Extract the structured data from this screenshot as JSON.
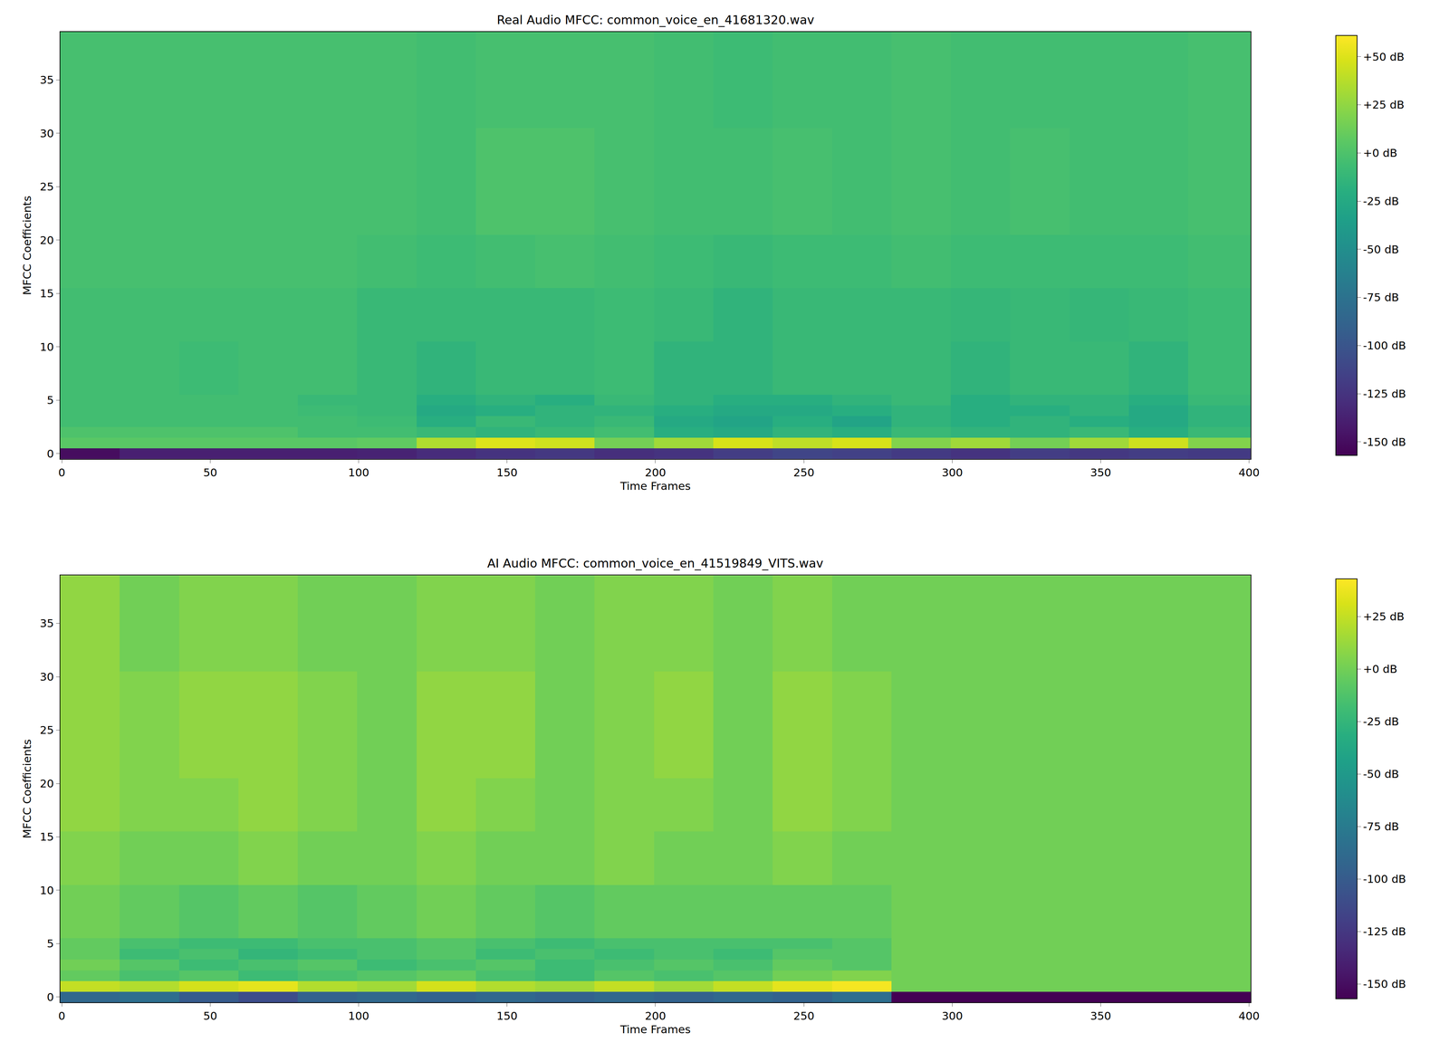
{
  "chart_data": [
    {
      "type": "heatmap",
      "title": "Real Audio MFCC: common_voice_en_41681320.wav",
      "x_label": "Time Frames",
      "y_label": "MFCC Coefficients",
      "xlim": [
        -0.5,
        400.5
      ],
      "ylim": [
        -0.5,
        39.5
      ],
      "xticks": [
        0,
        50,
        100,
        150,
        200,
        250,
        300,
        350,
        400
      ],
      "yticks": [
        0,
        5,
        10,
        15,
        20,
        25,
        30,
        35
      ],
      "color": "Viridis",
      "x_edges": [
        -0.5,
        19.5,
        39.5,
        59.5,
        79.5,
        99.5,
        119.5,
        139.5,
        159.5,
        179.5,
        199.5,
        219.5,
        239.5,
        259.5,
        279.5,
        299.5,
        319.5,
        339.5,
        359.5,
        379.5,
        400.5
      ],
      "y_edges": [
        -0.5,
        0.5,
        1.5,
        2.5,
        3.5,
        4.5,
        5.5,
        10.5,
        15.5,
        20.5,
        30.5,
        39.5
      ],
      "values": [
        [
          -150,
          -138,
          -138,
          -138,
          -138,
          -136,
          -130,
          -125,
          -122,
          -128,
          -125,
          -118,
          -112,
          -115,
          -120,
          -125,
          -118,
          -122,
          -118,
          -120
        ],
        [
          5,
          5,
          5,
          5,
          5,
          8,
          35,
          50,
          45,
          15,
          30,
          48,
          40,
          48,
          20,
          30,
          15,
          30,
          45,
          20
        ],
        [
          0,
          0,
          0,
          0,
          -5,
          -5,
          -10,
          -15,
          -10,
          -5,
          -20,
          -25,
          -15,
          -20,
          -10,
          -15,
          -15,
          -10,
          -20,
          -10
        ],
        [
          -5,
          -5,
          -5,
          -5,
          -5,
          -8,
          -20,
          -10,
          -15,
          -10,
          -25,
          -30,
          -20,
          -30,
          -15,
          -20,
          -15,
          -20,
          -25,
          -15
        ],
        [
          -5,
          -5,
          -5,
          -5,
          -8,
          -10,
          -25,
          -20,
          -15,
          -15,
          -20,
          -25,
          -25,
          -20,
          -15,
          -20,
          -20,
          -15,
          -25,
          -15
        ],
        [
          -5,
          -5,
          -5,
          -5,
          -10,
          -10,
          -20,
          -15,
          -20,
          -10,
          -15,
          -20,
          -20,
          -15,
          -10,
          -20,
          -15,
          -15,
          -20,
          -10
        ],
        [
          -5,
          -5,
          -8,
          -5,
          -5,
          -10,
          -15,
          -10,
          -10,
          -8,
          -15,
          -15,
          -10,
          -10,
          -10,
          -15,
          -10,
          -10,
          -15,
          -8
        ],
        [
          -5,
          -5,
          -5,
          -5,
          -5,
          -10,
          -10,
          -10,
          -10,
          -8,
          -10,
          -15,
          -10,
          -10,
          -10,
          -12,
          -10,
          -12,
          -10,
          -8
        ],
        [
          -3,
          -3,
          -3,
          -3,
          -3,
          -5,
          -8,
          -5,
          -3,
          -5,
          -8,
          -10,
          -8,
          -8,
          -5,
          -8,
          -8,
          -8,
          -8,
          -5
        ],
        [
          -3,
          -3,
          -3,
          -3,
          -3,
          -3,
          -5,
          0,
          0,
          -3,
          -5,
          -5,
          -3,
          -5,
          -3,
          -5,
          -3,
          -5,
          -5,
          -3
        ],
        [
          -3,
          -3,
          -3,
          -3,
          -3,
          -3,
          -5,
          -3,
          -3,
          -3,
          -5,
          -8,
          -5,
          -5,
          -3,
          -5,
          -5,
          -5,
          -5,
          -3
        ]
      ],
      "colorbar_range": [
        -157,
        61
      ],
      "colorbar_ticks": [
        {
          "value": 50,
          "label": "+50 dB"
        },
        {
          "value": 25,
          "label": "+25 dB"
        },
        {
          "value": 0,
          "label": "+0 dB"
        },
        {
          "value": -25,
          "label": "-25 dB"
        },
        {
          "value": -50,
          "label": "-50 dB"
        },
        {
          "value": -75,
          "label": "-75 dB"
        },
        {
          "value": -100,
          "label": "-100 dB"
        },
        {
          "value": -125,
          "label": "-125 dB"
        },
        {
          "value": -150,
          "label": "-150 dB"
        }
      ]
    },
    {
      "type": "heatmap",
      "title": "AI Audio MFCC: common_voice_en_41519849_VITS.wav",
      "x_label": "Time Frames",
      "y_label": "MFCC Coefficients",
      "xlim": [
        -0.5,
        400.5
      ],
      "ylim": [
        -0.5,
        39.5
      ],
      "xticks": [
        0,
        50,
        100,
        150,
        200,
        250,
        300,
        350,
        400
      ],
      "yticks": [
        0,
        5,
        10,
        15,
        20,
        25,
        30,
        35
      ],
      "color": "Viridis",
      "x_edges": [
        -0.5,
        19.5,
        39.5,
        59.5,
        79.5,
        99.5,
        119.5,
        139.5,
        159.5,
        179.5,
        199.5,
        219.5,
        239.5,
        259.5,
        279.5,
        299.5,
        319.5,
        339.5,
        359.5,
        379.5,
        400.5
      ],
      "y_edges": [
        -0.5,
        0.5,
        1.5,
        2.5,
        3.5,
        4.5,
        5.5,
        10.5,
        15.5,
        20.5,
        30.5,
        39.5
      ],
      "values": [
        [
          -90,
          -85,
          -100,
          -110,
          -95,
          -90,
          -95,
          -90,
          -95,
          -90,
          -95,
          -90,
          -95,
          -85,
          -157,
          -157,
          -157,
          -157,
          -157,
          -157
        ],
        [
          25,
          20,
          30,
          35,
          20,
          15,
          30,
          20,
          15,
          25,
          15,
          25,
          35,
          40,
          0,
          0,
          0,
          0,
          0,
          0
        ],
        [
          -5,
          -15,
          -10,
          -20,
          -15,
          -10,
          -5,
          -15,
          -20,
          -10,
          -15,
          -10,
          0,
          5,
          0,
          0,
          0,
          0,
          0,
          0
        ],
        [
          0,
          -10,
          -20,
          -15,
          -10,
          -20,
          -15,
          -10,
          -20,
          -15,
          -10,
          -15,
          -5,
          -10,
          0,
          0,
          0,
          0,
          0,
          0
        ],
        [
          -5,
          -20,
          -15,
          -25,
          -20,
          -15,
          -10,
          -20,
          -15,
          -20,
          -15,
          -20,
          -10,
          -10,
          0,
          0,
          0,
          0,
          0,
          0
        ],
        [
          -5,
          -15,
          -20,
          -20,
          -15,
          -15,
          -10,
          -15,
          -20,
          -15,
          -15,
          -15,
          -15,
          -10,
          0,
          0,
          0,
          0,
          0,
          0
        ],
        [
          0,
          -5,
          -10,
          -5,
          -10,
          -5,
          0,
          -5,
          -10,
          -5,
          -5,
          -5,
          -5,
          -5,
          0,
          0,
          0,
          0,
          0,
          0
        ],
        [
          5,
          0,
          0,
          5,
          0,
          0,
          5,
          0,
          0,
          5,
          0,
          0,
          5,
          0,
          0,
          0,
          0,
          0,
          0,
          0
        ],
        [
          10,
          5,
          5,
          10,
          5,
          0,
          10,
          5,
          0,
          5,
          5,
          0,
          10,
          5,
          0,
          0,
          0,
          0,
          0,
          0
        ],
        [
          10,
          5,
          10,
          10,
          5,
          0,
          10,
          10,
          0,
          5,
          10,
          0,
          10,
          5,
          0,
          0,
          0,
          0,
          0,
          0
        ],
        [
          10,
          0,
          5,
          5,
          0,
          0,
          5,
          5,
          0,
          5,
          5,
          0,
          5,
          0,
          0,
          0,
          0,
          0,
          0,
          0
        ]
      ],
      "colorbar_range": [
        -157,
        43
      ],
      "colorbar_ticks": [
        {
          "value": 25,
          "label": "+25 dB"
        },
        {
          "value": 0,
          "label": "+0 dB"
        },
        {
          "value": -25,
          "label": "-25 dB"
        },
        {
          "value": -50,
          "label": "-50 dB"
        },
        {
          "value": -75,
          "label": "-75 dB"
        },
        {
          "value": -100,
          "label": "-100 dB"
        },
        {
          "value": -125,
          "label": "-125 dB"
        },
        {
          "value": -150,
          "label": "-150 dB"
        }
      ]
    }
  ]
}
